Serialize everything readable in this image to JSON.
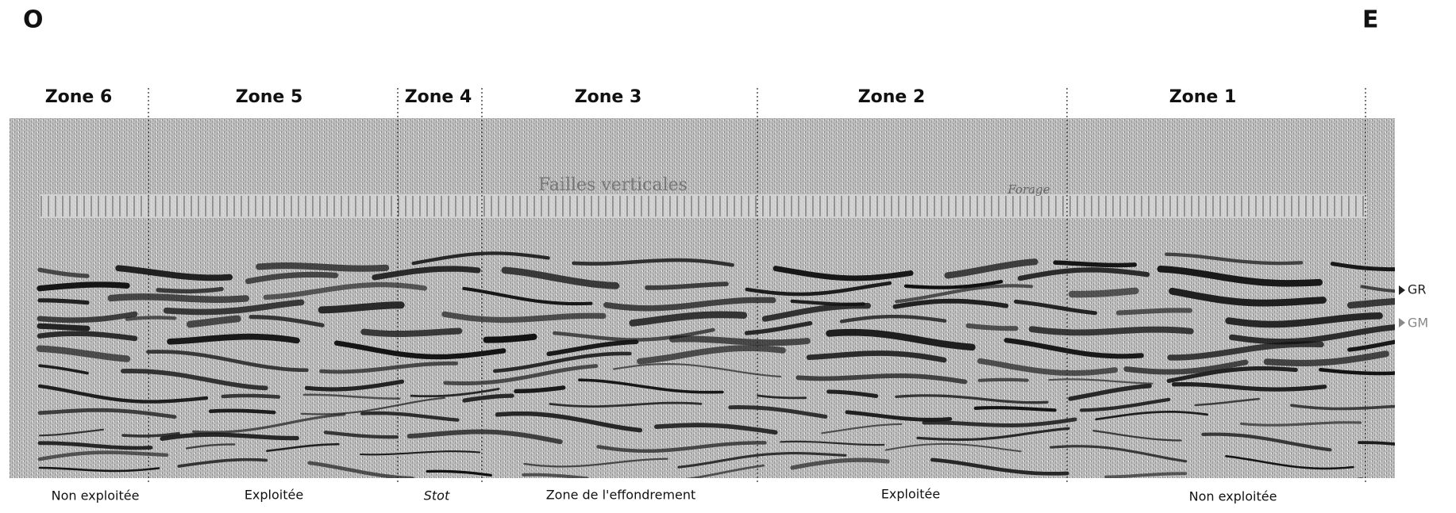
{
  "header": {
    "west": "O",
    "east": "E"
  },
  "zones": [
    "Zone 6",
    "Zone 5",
    "Zone 4",
    "Zone 3",
    "Zone 2",
    "Zone 1"
  ],
  "exploitation": [
    "Non exploitée",
    "Exploitée",
    "Stot",
    "Zone de l'effondrement",
    "Exploitée",
    "Non exploitée"
  ],
  "horizons": [
    "GR",
    "GM"
  ],
  "annotations": [
    "Failles verticales",
    "Forage"
  ]
}
